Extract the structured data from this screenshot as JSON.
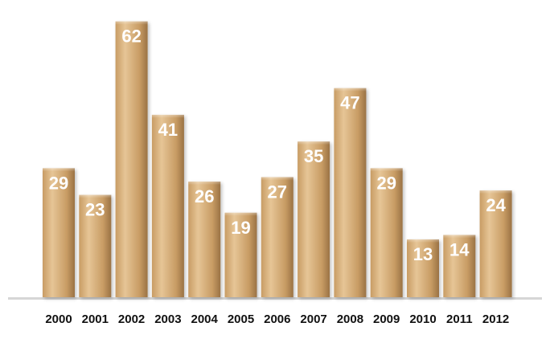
{
  "chart_data": {
    "type": "bar",
    "title": "",
    "xlabel": "",
    "ylabel": "",
    "categories": [
      "2000",
      "2001",
      "2002",
      "2003",
      "2004",
      "2005",
      "2006",
      "2007",
      "2008",
      "2009",
      "2010",
      "2011",
      "2012"
    ],
    "values": [
      29,
      23,
      62,
      41,
      26,
      19,
      27,
      35,
      47,
      29,
      13,
      14,
      24
    ],
    "ylim": [
      0,
      65
    ],
    "grid": false,
    "data_labels": true,
    "colors": {
      "bar_light": "#e6c596",
      "bar_mid": "#c89c64",
      "bar_dark": "#9a7244",
      "label_text": "#ffffff",
      "tick_text": "#111111",
      "baseline": "#d6d6d6"
    }
  }
}
